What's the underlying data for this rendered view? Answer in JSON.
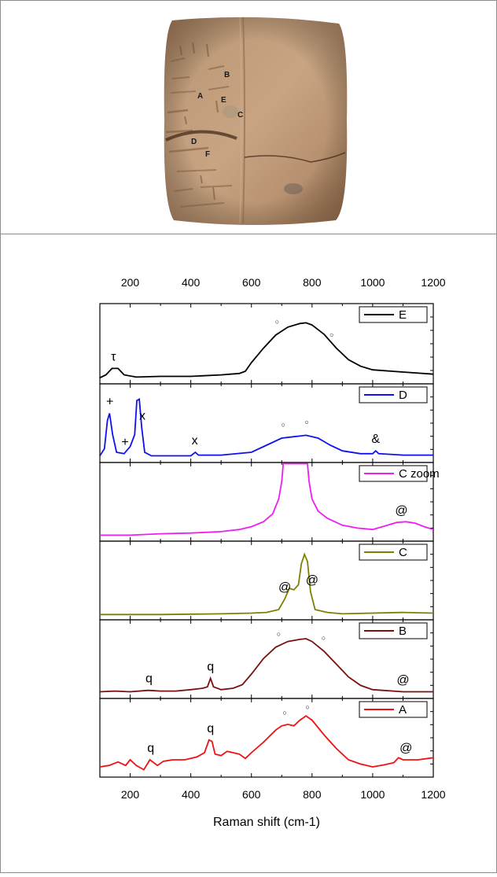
{
  "photo": {
    "markers": [
      "A",
      "B",
      "C",
      "D",
      "E",
      "F"
    ]
  },
  "chart_data": {
    "type": "line",
    "xlabel": "Raman shift (cm-1)",
    "xlim": [
      100,
      1200
    ],
    "x_ticks": [
      "200",
      "400",
      "600",
      "800",
      "1000",
      "1200"
    ],
    "x_tick_values": [
      200,
      400,
      600,
      800,
      1000,
      1200
    ],
    "stacked_panels": true,
    "y_axis_labels": false,
    "legend_placement": "top-right of each panel",
    "series": [
      {
        "name": "E",
        "color": "#000000",
        "points": [
          [
            100,
            0.04
          ],
          [
            120,
            0.08
          ],
          [
            140,
            0.17
          ],
          [
            160,
            0.17
          ],
          [
            180,
            0.08
          ],
          [
            220,
            0.05
          ],
          [
            300,
            0.06
          ],
          [
            400,
            0.06
          ],
          [
            500,
            0.08
          ],
          [
            560,
            0.1
          ],
          [
            580,
            0.13
          ],
          [
            600,
            0.25
          ],
          [
            640,
            0.45
          ],
          [
            680,
            0.63
          ],
          [
            720,
            0.74
          ],
          [
            760,
            0.79
          ],
          [
            780,
            0.8
          ],
          [
            800,
            0.77
          ],
          [
            840,
            0.64
          ],
          [
            880,
            0.45
          ],
          [
            920,
            0.29
          ],
          [
            960,
            0.2
          ],
          [
            1000,
            0.15
          ],
          [
            1100,
            0.12
          ],
          [
            1200,
            0.09
          ]
        ],
        "annotations": [
          {
            "text": "τ",
            "x": 145
          },
          {
            "text": "○",
            "x": 685
          },
          {
            "text": "○",
            "x": 865
          }
        ]
      },
      {
        "name": "D",
        "color": "#1010f0",
        "points": [
          [
            100,
            0.05
          ],
          [
            115,
            0.15
          ],
          [
            125,
            0.55
          ],
          [
            132,
            0.65
          ],
          [
            142,
            0.35
          ],
          [
            155,
            0.1
          ],
          [
            180,
            0.08
          ],
          [
            200,
            0.18
          ],
          [
            215,
            0.35
          ],
          [
            222,
            0.83
          ],
          [
            230,
            0.85
          ],
          [
            238,
            0.45
          ],
          [
            248,
            0.1
          ],
          [
            270,
            0.05
          ],
          [
            350,
            0.05
          ],
          [
            400,
            0.05
          ],
          [
            415,
            0.1
          ],
          [
            425,
            0.06
          ],
          [
            500,
            0.06
          ],
          [
            600,
            0.1
          ],
          [
            650,
            0.2
          ],
          [
            700,
            0.3
          ],
          [
            740,
            0.32
          ],
          [
            780,
            0.34
          ],
          [
            820,
            0.3
          ],
          [
            860,
            0.2
          ],
          [
            900,
            0.12
          ],
          [
            960,
            0.08
          ],
          [
            1000,
            0.08
          ],
          [
            1010,
            0.12
          ],
          [
            1020,
            0.08
          ],
          [
            1100,
            0.06
          ],
          [
            1200,
            0.06
          ]
        ],
        "annotations": [
          {
            "text": "+",
            "x": 133
          },
          {
            "text": "+",
            "x": 183
          },
          {
            "text": "x",
            "x": 240
          },
          {
            "text": "x",
            "x": 413
          },
          {
            "text": "○",
            "x": 705
          },
          {
            "text": "○",
            "x": 783
          },
          {
            "text": "&",
            "x": 1010
          }
        ]
      },
      {
        "name": "C zoom",
        "color": "#ee1ef0",
        "points": [
          [
            100,
            0.04
          ],
          [
            200,
            0.04
          ],
          [
            300,
            0.06
          ],
          [
            400,
            0.07
          ],
          [
            500,
            0.09
          ],
          [
            560,
            0.12
          ],
          [
            600,
            0.16
          ],
          [
            640,
            0.23
          ],
          [
            670,
            0.34
          ],
          [
            690,
            0.55
          ],
          [
            700,
            0.8
          ],
          [
            705,
            1.05
          ],
          [
            785,
            1.05
          ],
          [
            790,
            0.8
          ],
          [
            800,
            0.55
          ],
          [
            820,
            0.38
          ],
          [
            850,
            0.28
          ],
          [
            900,
            0.18
          ],
          [
            950,
            0.14
          ],
          [
            1000,
            0.12
          ],
          [
            1040,
            0.17
          ],
          [
            1080,
            0.22
          ],
          [
            1110,
            0.23
          ],
          [
            1140,
            0.21
          ],
          [
            1170,
            0.16
          ],
          [
            1200,
            0.12
          ]
        ],
        "annotations": [
          {
            "text": "@",
            "x": 1095
          }
        ]
      },
      {
        "name": "C",
        "color": "#808000",
        "points": [
          [
            100,
            0.03
          ],
          [
            300,
            0.03
          ],
          [
            500,
            0.04
          ],
          [
            600,
            0.05
          ],
          [
            650,
            0.06
          ],
          [
            690,
            0.1
          ],
          [
            710,
            0.25
          ],
          [
            725,
            0.4
          ],
          [
            740,
            0.38
          ],
          [
            755,
            0.45
          ],
          [
            765,
            0.75
          ],
          [
            775,
            0.88
          ],
          [
            785,
            0.78
          ],
          [
            795,
            0.35
          ],
          [
            810,
            0.1
          ],
          [
            850,
            0.06
          ],
          [
            900,
            0.04
          ],
          [
            1100,
            0.06
          ],
          [
            1200,
            0.05
          ]
        ],
        "annotations": [
          {
            "text": "@",
            "x": 710
          },
          {
            "text": "@",
            "x": 800
          }
        ]
      },
      {
        "name": "B",
        "color": "#7a1010",
        "points": [
          [
            100,
            0.05
          ],
          [
            150,
            0.06
          ],
          [
            200,
            0.05
          ],
          [
            260,
            0.07
          ],
          [
            300,
            0.06
          ],
          [
            350,
            0.06
          ],
          [
            400,
            0.08
          ],
          [
            440,
            0.1
          ],
          [
            455,
            0.12
          ],
          [
            465,
            0.24
          ],
          [
            475,
            0.12
          ],
          [
            500,
            0.08
          ],
          [
            540,
            0.1
          ],
          [
            570,
            0.15
          ],
          [
            600,
            0.3
          ],
          [
            640,
            0.52
          ],
          [
            680,
            0.68
          ],
          [
            720,
            0.76
          ],
          [
            760,
            0.79
          ],
          [
            780,
            0.8
          ],
          [
            800,
            0.76
          ],
          [
            840,
            0.62
          ],
          [
            880,
            0.44
          ],
          [
            920,
            0.26
          ],
          [
            960,
            0.14
          ],
          [
            1000,
            0.08
          ],
          [
            1100,
            0.05
          ],
          [
            1200,
            0.05
          ]
        ],
        "annotations": [
          {
            "text": "q",
            "x": 262
          },
          {
            "text": "q",
            "x": 465
          },
          {
            "text": "○",
            "x": 690
          },
          {
            "text": "○",
            "x": 838
          },
          {
            "text": "@",
            "x": 1100
          }
        ]
      },
      {
        "name": "A",
        "color": "#f01010",
        "points": [
          [
            100,
            0.1
          ],
          [
            130,
            0.12
          ],
          [
            160,
            0.17
          ],
          [
            185,
            0.12
          ],
          [
            200,
            0.2
          ],
          [
            220,
            0.12
          ],
          [
            245,
            0.06
          ],
          [
            265,
            0.2
          ],
          [
            290,
            0.12
          ],
          [
            310,
            0.18
          ],
          [
            340,
            0.2
          ],
          [
            380,
            0.2
          ],
          [
            420,
            0.24
          ],
          [
            445,
            0.3
          ],
          [
            460,
            0.48
          ],
          [
            470,
            0.46
          ],
          [
            480,
            0.28
          ],
          [
            500,
            0.26
          ],
          [
            520,
            0.32
          ],
          [
            560,
            0.28
          ],
          [
            580,
            0.22
          ],
          [
            600,
            0.3
          ],
          [
            640,
            0.45
          ],
          [
            680,
            0.62
          ],
          [
            700,
            0.68
          ],
          [
            720,
            0.7
          ],
          [
            740,
            0.68
          ],
          [
            760,
            0.76
          ],
          [
            780,
            0.82
          ],
          [
            800,
            0.76
          ],
          [
            840,
            0.55
          ],
          [
            880,
            0.36
          ],
          [
            920,
            0.2
          ],
          [
            960,
            0.14
          ],
          [
            1000,
            0.1
          ],
          [
            1040,
            0.13
          ],
          [
            1070,
            0.16
          ],
          [
            1085,
            0.23
          ],
          [
            1100,
            0.2
          ],
          [
            1150,
            0.2
          ],
          [
            1200,
            0.23
          ]
        ],
        "annotations": [
          {
            "text": "q",
            "x": 268
          },
          {
            "text": "q",
            "x": 465
          },
          {
            "text": "○",
            "x": 710
          },
          {
            "text": "○",
            "x": 785
          },
          {
            "text": "@",
            "x": 1110
          }
        ]
      }
    ]
  }
}
